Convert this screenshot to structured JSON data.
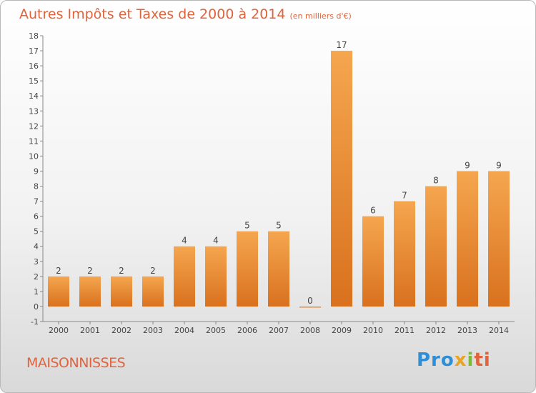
{
  "header": {
    "title": "Autres Impôts et Taxes de 2000 à 2014",
    "unit": "(en milliers d'€)"
  },
  "footer": {
    "commune": "MAISONNISSES",
    "logo": {
      "p1": "Pro",
      "p2": "x",
      "p3": "i",
      "p4": "ti"
    }
  },
  "colors": {
    "bar_light": "#f5a64f",
    "bar_dark": "#d9711e",
    "title": "#e0633b"
  },
  "chart_data": {
    "type": "bar",
    "title": "Autres Impôts et Taxes de 2000 à 2014",
    "subtitle": "(en milliers d'€)",
    "xlabel": "",
    "ylabel": "",
    "categories": [
      "2000",
      "2001",
      "2002",
      "2003",
      "2004",
      "2005",
      "2006",
      "2007",
      "2008",
      "2009",
      "2010",
      "2011",
      "2012",
      "2013",
      "2014"
    ],
    "values": [
      2,
      2,
      2,
      2,
      4,
      4,
      5,
      5,
      0,
      17,
      6,
      7,
      8,
      9,
      9
    ],
    "data_labels": [
      "2",
      "2",
      "2",
      "2",
      "4",
      "4",
      "5",
      "5",
      "0",
      "17",
      "6",
      "7",
      "8",
      "9",
      "9"
    ],
    "ylim": [
      -1,
      18
    ],
    "yticks": [
      "-1",
      "0",
      "1",
      "2",
      "3",
      "4",
      "5",
      "6",
      "7",
      "8",
      "9",
      "10",
      "11",
      "12",
      "13",
      "14",
      "15",
      "16",
      "17",
      "18"
    ],
    "grid": false,
    "legend": "none"
  }
}
